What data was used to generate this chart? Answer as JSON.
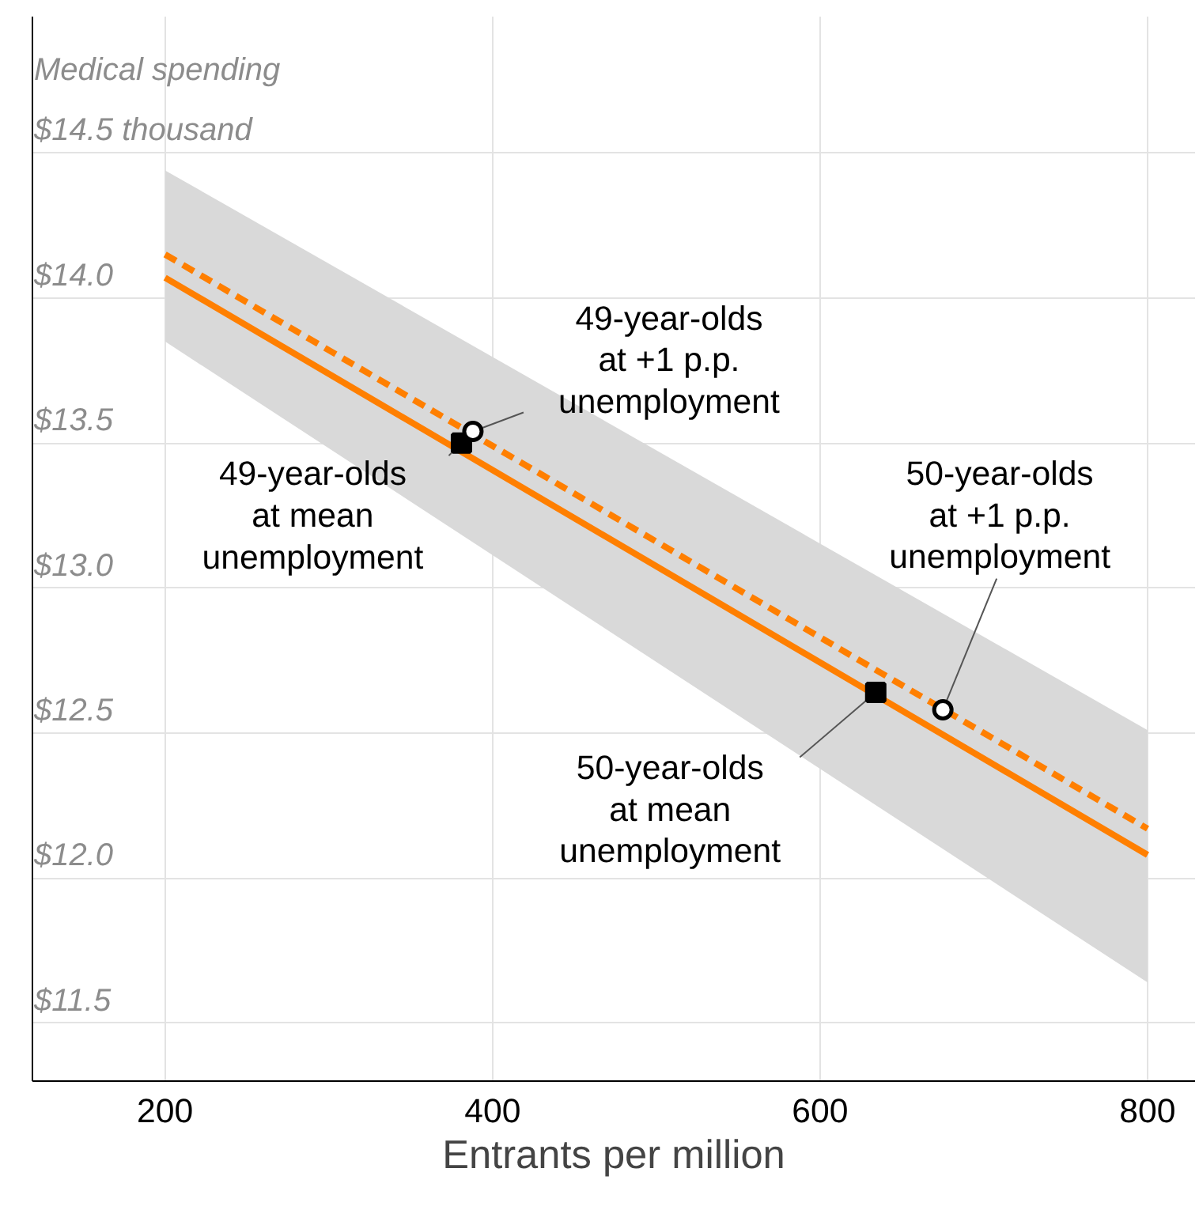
{
  "chart_data": {
    "type": "line",
    "ylabel": "Medical spending",
    "xlabel": "Entrants per million",
    "xlim": [
      119,
      829
    ],
    "ylim": [
      11.3,
      14.97
    ],
    "xticks": [
      200,
      400,
      600,
      800
    ],
    "yticks": [
      {
        "value": 11.5,
        "label": "$11.5"
      },
      {
        "value": 12.0,
        "label": "$12.0"
      },
      {
        "value": 12.5,
        "label": "$12.5"
      },
      {
        "value": 13.0,
        "label": "$13.0"
      },
      {
        "value": 13.5,
        "label": "$13.5"
      },
      {
        "value": 14.0,
        "label": "$14.0"
      },
      {
        "value": 14.5,
        "label": "$14.5 thousand"
      }
    ],
    "grid": true,
    "series": [
      {
        "x": [
          200,
          800
        ],
        "values": [
          14.07,
          12.08
        ],
        "lower": [
          13.85,
          11.64
        ],
        "upper": [
          14.44,
          12.51
        ],
        "color": "#ff7f00",
        "line_style": "solid"
      },
      {
        "x": [
          200,
          800
        ],
        "values": [
          14.15,
          12.17
        ],
        "color": "#ff7f00",
        "line_style": "dashed"
      },
      {
        "type": "scatter",
        "x": [
          381,
          634
        ],
        "values": [
          13.5,
          12.64
        ],
        "color": "#000000",
        "marker": "square"
      },
      {
        "type": "scatter",
        "x": [
          388,
          675
        ],
        "values": [
          13.54,
          12.58
        ],
        "color": "#000000",
        "marker": "circle"
      }
    ],
    "annotations": [
      {
        "text": "49-year-olds\nat mean\nunemployment",
        "x": 381,
        "y": 13.5
      },
      {
        "text": "49-year-olds\nat +1 p.p.\nunemployment",
        "x": 388,
        "y": 13.54
      },
      {
        "text": "50-year-olds\nat mean\nunemployment",
        "x": 634,
        "y": 12.64
      },
      {
        "text": "50-year-olds\nat +1 p.p.\nunemployment",
        "x": 675,
        "y": 12.58
      }
    ]
  }
}
